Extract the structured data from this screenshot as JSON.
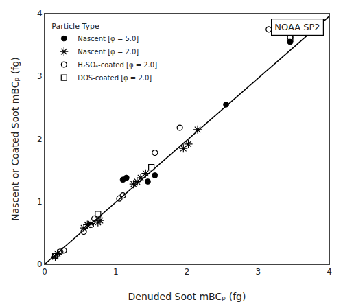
{
  "chart_data": {
    "type": "scatter",
    "title": "NOAA SP2",
    "xlabel": "Denuded Soot mBCₚ (fg)",
    "ylabel": "Nascent or Coated Soot mBCₚ (fg)",
    "xlim": [
      0,
      4
    ],
    "ylim": [
      0,
      4
    ],
    "xticks": [
      0,
      1,
      2,
      3,
      4
    ],
    "yticks": [
      0,
      1,
      2,
      3,
      4
    ],
    "grid": false,
    "legend": "upper left",
    "legend_title": "Particle Type",
    "background_color": "#ffffff",
    "series": [
      {
        "type": "line",
        "color": "#000000",
        "x": [
          0,
          4
        ],
        "y": [
          0,
          3.96
        ]
      },
      {
        "type": "scatter",
        "name": "Nascent [φ = 5.0]",
        "marker": "circle",
        "color": "#000000",
        "x": [
          1.1,
          1.15,
          1.45,
          1.55,
          2.55,
          3.45
        ],
        "y": [
          1.35,
          1.38,
          1.32,
          1.42,
          2.55,
          3.55
        ]
      },
      {
        "type": "scatter",
        "name": "Nascent [φ = 2.0]",
        "marker": "asterisk",
        "color": "#000000",
        "x": [
          0.15,
          0.18,
          0.55,
          0.6,
          0.65,
          0.75,
          0.78,
          1.25,
          1.3,
          1.35,
          1.42,
          1.95,
          2.02,
          2.15
        ],
        "y": [
          0.12,
          0.17,
          0.58,
          0.63,
          0.65,
          0.67,
          0.7,
          1.28,
          1.32,
          1.38,
          1.45,
          1.85,
          1.92,
          2.15
        ]
      },
      {
        "type": "scatter",
        "name": "H₂SO₄-coated [φ = 2.0]",
        "marker": "circle-open",
        "color": "#000000",
        "x": [
          0.15,
          0.22,
          0.27,
          0.55,
          0.65,
          0.7,
          1.05,
          1.1,
          1.55,
          1.9,
          3.15,
          3.45
        ],
        "y": [
          0.13,
          0.2,
          0.22,
          0.52,
          0.63,
          0.73,
          1.05,
          1.1,
          1.78,
          2.18,
          3.75,
          3.62
        ]
      },
      {
        "type": "scatter",
        "name": "DOS-coated [φ = 2.0]",
        "marker": "square-open",
        "color": "#000000",
        "x": [
          0.15,
          0.75,
          1.5,
          3.45
        ],
        "y": [
          0.13,
          0.8,
          1.55,
          3.6
        ]
      }
    ]
  }
}
